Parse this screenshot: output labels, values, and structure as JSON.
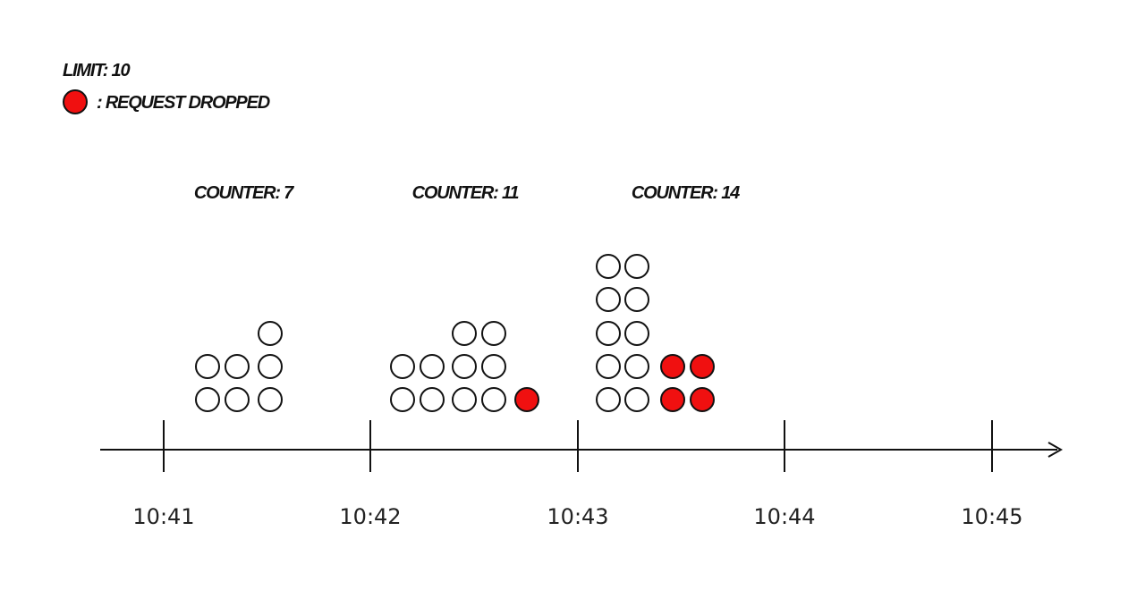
{
  "legend": {
    "limit": "LIMIT: 10",
    "dropped": ": REQUEST DROPPED"
  },
  "counters": [
    "COUNTER: 7",
    "COUNTER: 11",
    "COUNTER: 14"
  ],
  "timeline": {
    "labels": [
      "10:41",
      "10:42",
      "10:43",
      "10:44",
      "10:45"
    ]
  }
}
